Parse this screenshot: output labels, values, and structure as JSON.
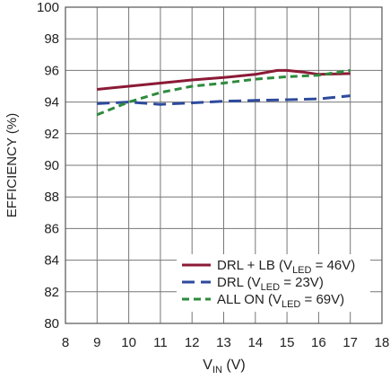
{
  "chart_data": {
    "type": "line",
    "title": "",
    "xlabel_main": "V",
    "xlabel_sub": "IN",
    "xlabel_unit": " (V)",
    "ylabel": "EFFICIENCY (%)",
    "xlim": [
      8,
      18
    ],
    "ylim": [
      80,
      100
    ],
    "xticks": [
      8,
      9,
      10,
      11,
      12,
      13,
      14,
      15,
      16,
      17,
      18
    ],
    "yticks": [
      80,
      82,
      84,
      86,
      88,
      90,
      92,
      94,
      96,
      98,
      100
    ],
    "grid": true,
    "legend_position": "bottom-right",
    "series": [
      {
        "name": "DRL + LB (VLED = 46V)",
        "legend_pre": "DRL + LB (V",
        "legend_sub": "LED",
        "legend_post": " = 46V)",
        "color": "#8b1a36",
        "style": "solid",
        "x": [
          9,
          10,
          11,
          12,
          13,
          14,
          14.7,
          15,
          15.5,
          16,
          17
        ],
        "y": [
          94.8,
          95.0,
          95.2,
          95.4,
          95.55,
          95.75,
          96.0,
          96.0,
          95.9,
          95.75,
          95.8
        ]
      },
      {
        "name": "DRL (VLED = 23V)",
        "legend_pre": "DRL (V",
        "legend_sub": "LED",
        "legend_post": " = 23V)",
        "color": "#2e4a9c",
        "style": "longdash",
        "x": [
          9,
          10,
          11,
          12,
          13,
          14,
          15,
          16,
          17
        ],
        "y": [
          93.9,
          94.0,
          93.85,
          93.95,
          94.05,
          94.1,
          94.15,
          94.2,
          94.4
        ]
      },
      {
        "name": "ALL ON (VLED = 69V)",
        "legend_pre": "ALL ON (V",
        "legend_sub": "LED",
        "legend_post": " = 69V)",
        "color": "#2e8b3d",
        "style": "dash",
        "x": [
          9,
          10,
          11,
          12,
          13,
          14,
          15,
          16,
          17
        ],
        "y": [
          93.2,
          94.0,
          94.6,
          95.0,
          95.2,
          95.45,
          95.6,
          95.7,
          96.0
        ]
      }
    ]
  }
}
